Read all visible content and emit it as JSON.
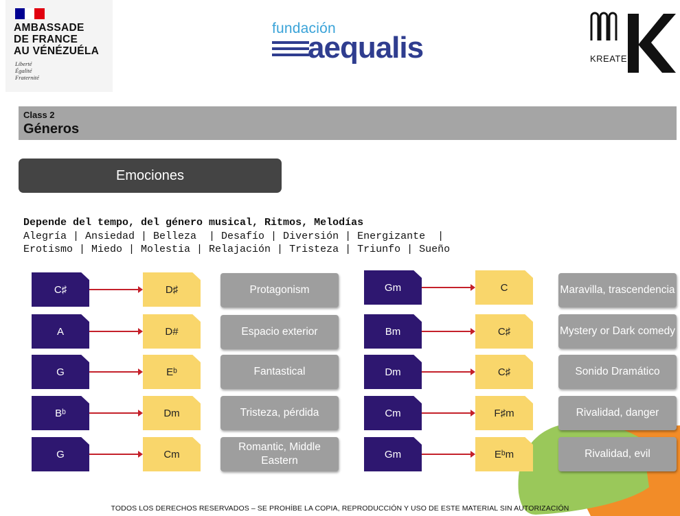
{
  "header": {
    "embassy": {
      "lines": "AMBASSADE\nDE FRANCE\nAU VÉNÉZUÉLA",
      "motto": "Liberté\nÉgalité\nFraternité",
      "flag_colors": [
        "#000091",
        "#ffffff",
        "#e1000f"
      ]
    },
    "fundacion": {
      "small": "fundación",
      "big": "aequalis"
    },
    "kreatek": {
      "text": "KREATEK"
    }
  },
  "class_bar": {
    "label": "Class 2",
    "title": "Géneros"
  },
  "section_button": "Emociones",
  "description": {
    "heading": "Depende del tempo, del género musical, Ritmos, Melodías",
    "line1": "Alegría | Ansiedad | Belleza  | Desafío | Diversión | Energizante  |",
    "line2": "Erotismo | Miedo | Molestia | Relajación | Tristeza | Triunfo | Sueño"
  },
  "progressions_left": [
    {
      "from": "C♯",
      "to": "D♯",
      "mood": "Protagonism"
    },
    {
      "from": "A",
      "to": "D#",
      "mood": "Espacio exterior"
    },
    {
      "from": "G",
      "to": "Eᵇ",
      "mood": "Fantastical"
    },
    {
      "from": "Bᵇ",
      "to": "Dm",
      "mood": "Tristeza, pérdida"
    },
    {
      "from": "G",
      "to": "Cm",
      "mood": "Romantic, Middle Eastern"
    }
  ],
  "progressions_right": [
    {
      "from": "Gm",
      "to": "C",
      "mood": "Maravilla, trascendencia"
    },
    {
      "from": "Bm",
      "to": "C♯",
      "mood": "Mystery or Dark comedy"
    },
    {
      "from": "Dm",
      "to": "C♯",
      "mood": "Sonido Dramático"
    },
    {
      "from": "Cm",
      "to": "F♯m",
      "mood": "Rivalidad, danger"
    },
    {
      "from": "Gm",
      "to": "Eᵇm",
      "mood": "Rivalidad, evil"
    }
  ],
  "footer": "TODOS LOS DERECHOS RESERVADOS – SE PROHÍBE LA COPIA, REPRODUCCIÓN Y USO DE ESTE MATERIAL SIN AUTORIZACIÓN",
  "colors": {
    "chord_from": "#2e1770",
    "chord_to": "#f9d66b",
    "mood_box": "#9e9e9e",
    "arrow": "#c4202a",
    "accent_green": "#9ac85a",
    "accent_orange": "#f28c28"
  }
}
